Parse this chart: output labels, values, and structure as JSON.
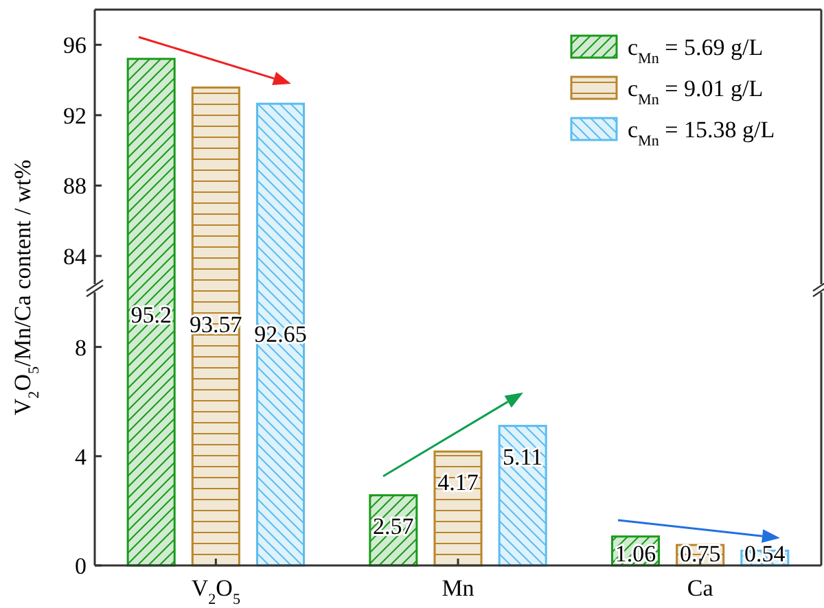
{
  "chart_data": [
    {
      "type": "bar",
      "ylabel": "V$_{2}$O$_{5}$/Mn/Ca content / wt%",
      "categories": [
        null,
        null,
        null
      ],
      "series": [
        {
          "name": "c$_{Mn}$ = 5.69 g/L",
          "color": "#1a9a1a",
          "values": [
            95.2,
            null,
            null
          ]
        },
        {
          "name": "c$_{Mn}$ = 9.01 g/L",
          "color": "#b8862b",
          "values": [
            93.57,
            null,
            null
          ]
        },
        {
          "name": "c$_{Mn}$ = 15.38 g/L",
          "color": "#5bbcf0",
          "values": [
            92.65,
            null,
            null
          ]
        }
      ],
      "ylim": [
        82.4,
        98
      ],
      "yticks": [
        84,
        88,
        92,
        96
      ],
      "legend": "top right",
      "data_labels": true,
      "tick_labels": "y"
    },
    {
      "type": "bar",
      "categories": [
        "V$_{2}$O$_{5}$",
        "Mn",
        "Ca"
      ],
      "series": [
        {
          "color": "#1a9a1a",
          "values": [
            null,
            2.57,
            1.06
          ]
        },
        {
          "color": "#b8862b",
          "values": [
            null,
            4.17,
            0.75
          ]
        },
        {
          "color": "#5bbcf0",
          "values": [
            null,
            5.11,
            0.54
          ]
        }
      ],
      "ylim": [
        0,
        10
      ],
      "yticks": [
        0,
        4,
        8
      ],
      "data_labels": true
    }
  ]
}
